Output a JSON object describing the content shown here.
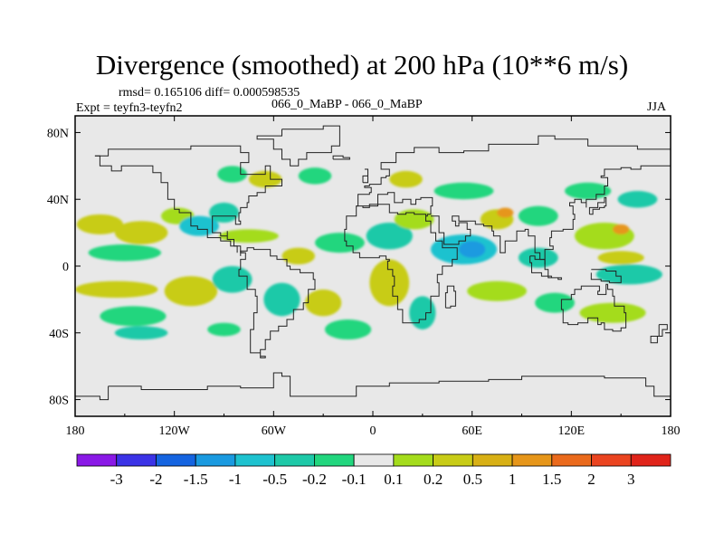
{
  "header": {
    "title": "Divergence (smoothed) at 200 hPa (10**6 m/s)",
    "stats": "rmsd= 0.165106 diff= 0.000598535",
    "expt": "Expt = teyfn3-teyfn2",
    "cases": "066_0_MaBP - 066_0_MaBP",
    "season": "JJA"
  },
  "chart_data": {
    "type": "heatmap",
    "title": "Divergence (smoothed) at 200 hPa (10**6 m/s)",
    "projection": "cylindrical equidistant",
    "xlim": [
      -180,
      180
    ],
    "ylim": [
      -90,
      90
    ],
    "x_ticks": [
      {
        "value": -180,
        "label": "180"
      },
      {
        "value": -120,
        "label": "120W"
      },
      {
        "value": -60,
        "label": "60W"
      },
      {
        "value": 0,
        "label": "0"
      },
      {
        "value": 60,
        "label": "60E"
      },
      {
        "value": 120,
        "label": "120E"
      },
      {
        "value": 180,
        "label": "180"
      }
    ],
    "y_ticks": [
      {
        "value": 80,
        "label": "80N"
      },
      {
        "value": 40,
        "label": "40N"
      },
      {
        "value": 0,
        "label": "0"
      },
      {
        "value": -40,
        "label": "40S"
      },
      {
        "value": -80,
        "label": "80S"
      }
    ],
    "colorbar": {
      "colors": [
        "#8a19e6",
        "#3b33e6",
        "#1564e0",
        "#1a9ae0",
        "#1ec2cf",
        "#1ec9a8",
        "#22d67e",
        "#e8e8e8",
        "#a4dc1c",
        "#c8cc17",
        "#d8b015",
        "#e6961a",
        "#ea6a1c",
        "#ea4420",
        "#e0241a"
      ],
      "tick_labels": [
        "-3",
        "-2",
        "-1.5",
        "-1",
        "-0.5",
        "-0.2",
        "-0.1",
        "0.1",
        "0.2",
        "0.5",
        "1",
        "1.5",
        "2",
        "3"
      ]
    },
    "anomaly_blobs": [
      {
        "lon": -165,
        "lat": 25,
        "rlon": 14,
        "rlat": 6,
        "level": 9
      },
      {
        "lon": -140,
        "lat": 20,
        "rlon": 16,
        "rlat": 7,
        "level": 9
      },
      {
        "lon": -150,
        "lat": 8,
        "rlon": 22,
        "rlat": 5,
        "level": 6
      },
      {
        "lon": -118,
        "lat": 30,
        "rlon": 10,
        "rlat": 5,
        "level": 8
      },
      {
        "lon": -105,
        "lat": 24,
        "rlon": 12,
        "rlat": 6,
        "level": 4
      },
      {
        "lon": -90,
        "lat": 32,
        "rlon": 9,
        "rlat": 6,
        "level": 5
      },
      {
        "lon": -85,
        "lat": 55,
        "rlon": 9,
        "rlat": 5,
        "level": 6
      },
      {
        "lon": -65,
        "lat": 52,
        "rlon": 10,
        "rlat": 5,
        "level": 9
      },
      {
        "lon": -35,
        "lat": 54,
        "rlon": 10,
        "rlat": 5,
        "level": 6
      },
      {
        "lon": -75,
        "lat": 18,
        "rlon": 18,
        "rlat": 4,
        "level": 8
      },
      {
        "lon": -45,
        "lat": 6,
        "rlon": 10,
        "rlat": 5,
        "level": 9
      },
      {
        "lon": -20,
        "lat": 14,
        "rlon": 15,
        "rlat": 6,
        "level": 6
      },
      {
        "lon": -155,
        "lat": -14,
        "rlon": 25,
        "rlat": 5,
        "level": 9
      },
      {
        "lon": -145,
        "lat": -30,
        "rlon": 20,
        "rlat": 6,
        "level": 6
      },
      {
        "lon": -110,
        "lat": -15,
        "rlon": 16,
        "rlat": 9,
        "level": 9
      },
      {
        "lon": -85,
        "lat": -8,
        "rlon": 12,
        "rlat": 8,
        "level": 5
      },
      {
        "lon": -55,
        "lat": -20,
        "rlon": 11,
        "rlat": 10,
        "level": 5
      },
      {
        "lon": -30,
        "lat": -22,
        "rlon": 11,
        "rlat": 8,
        "level": 9
      },
      {
        "lon": -15,
        "lat": -38,
        "rlon": 14,
        "rlat": 6,
        "level": 6
      },
      {
        "lon": 10,
        "lat": -10,
        "rlon": 12,
        "rlat": 14,
        "level": 9
      },
      {
        "lon": 30,
        "lat": -28,
        "rlon": 8,
        "rlat": 10,
        "level": 5
      },
      {
        "lon": 10,
        "lat": 18,
        "rlon": 14,
        "rlat": 8,
        "level": 5
      },
      {
        "lon": 25,
        "lat": 28,
        "rlon": 12,
        "rlat": 6,
        "level": 8
      },
      {
        "lon": 20,
        "lat": 52,
        "rlon": 10,
        "rlat": 5,
        "level": 9
      },
      {
        "lon": 55,
        "lat": 45,
        "rlon": 18,
        "rlat": 5,
        "level": 6
      },
      {
        "lon": 55,
        "lat": 10,
        "rlon": 20,
        "rlat": 9,
        "level": 4
      },
      {
        "lon": 60,
        "lat": 10,
        "rlon": 8,
        "rlat": 5,
        "level": 3
      },
      {
        "lon": 75,
        "lat": 28,
        "rlon": 10,
        "rlat": 6,
        "level": 9
      },
      {
        "lon": 80,
        "lat": 32,
        "rlon": 5,
        "rlat": 3,
        "level": 11
      },
      {
        "lon": 100,
        "lat": 30,
        "rlon": 12,
        "rlat": 6,
        "level": 6
      },
      {
        "lon": 100,
        "lat": 5,
        "rlon": 12,
        "rlat": 6,
        "level": 5
      },
      {
        "lon": 75,
        "lat": -15,
        "rlon": 18,
        "rlat": 6,
        "level": 8
      },
      {
        "lon": 110,
        "lat": -22,
        "rlon": 12,
        "rlat": 6,
        "level": 6
      },
      {
        "lon": 140,
        "lat": 18,
        "rlon": 18,
        "rlat": 8,
        "level": 8
      },
      {
        "lon": 150,
        "lat": 22,
        "rlon": 5,
        "rlat": 3,
        "level": 11
      },
      {
        "lon": 130,
        "lat": 45,
        "rlon": 14,
        "rlat": 5,
        "level": 6
      },
      {
        "lon": 160,
        "lat": 40,
        "rlon": 12,
        "rlat": 5,
        "level": 5
      },
      {
        "lon": 155,
        "lat": -5,
        "rlon": 20,
        "rlat": 6,
        "level": 5
      },
      {
        "lon": 145,
        "lat": -28,
        "rlon": 20,
        "rlat": 6,
        "level": 8
      },
      {
        "lon": -140,
        "lat": -40,
        "rlon": 16,
        "rlat": 4,
        "level": 5
      },
      {
        "lon": -90,
        "lat": -38,
        "rlon": 10,
        "rlat": 4,
        "level": 6
      },
      {
        "lon": 150,
        "lat": 5,
        "rlon": 14,
        "rlat": 4,
        "level": 9
      }
    ]
  }
}
